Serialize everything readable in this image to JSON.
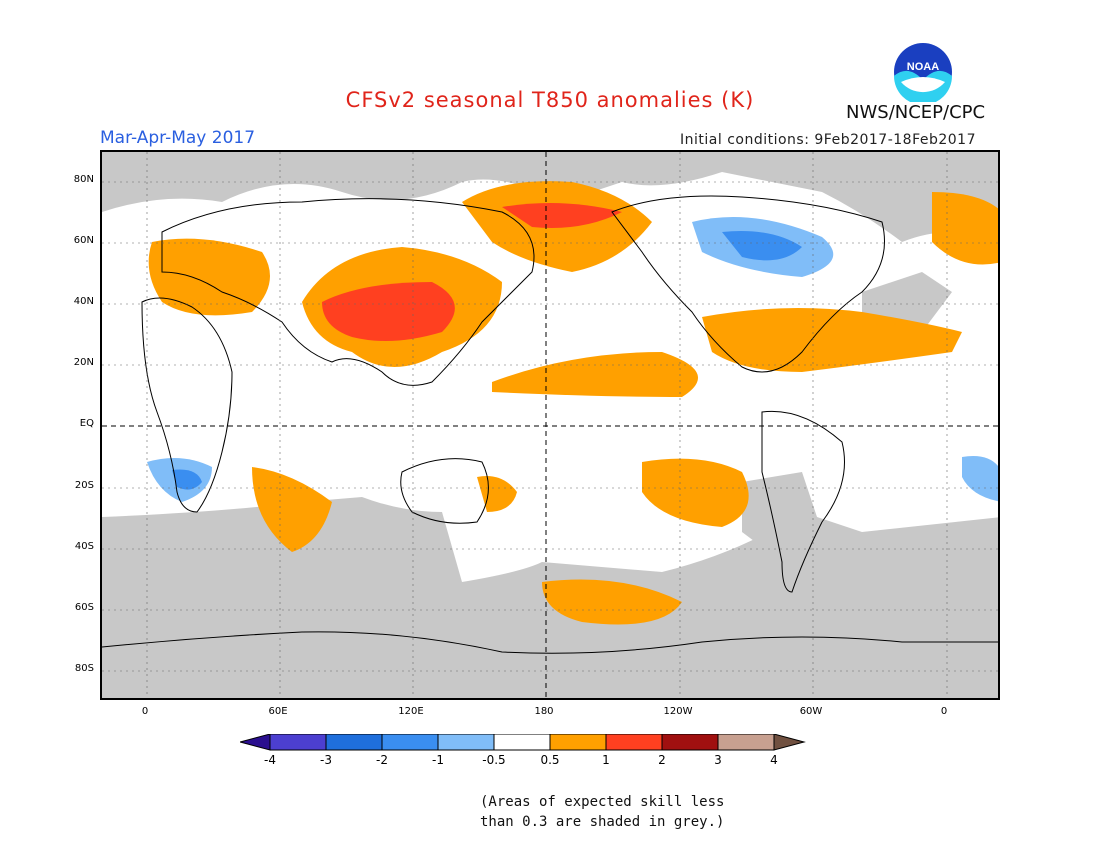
{
  "title": "CFSv2 seasonal T850 anomalies (K)",
  "organization": "NWS/NCEP/CPC",
  "logo_text": "NOAA",
  "season": "Mar-Apr-May 2017",
  "initial_conditions": "Initial conditions: 9Feb2017-18Feb2017",
  "lat_labels": [
    "80N",
    "60N",
    "40N",
    "20N",
    "EQ",
    "20S",
    "40S",
    "60S",
    "80S"
  ],
  "lon_labels": [
    "0",
    "60E",
    "120E",
    "180",
    "120W",
    "60W",
    "0"
  ],
  "colorbar": {
    "labels": [
      "-4",
      "-3",
      "-2",
      "-1",
      "-0.5",
      "0.5",
      "1",
      "2",
      "3",
      "4"
    ],
    "colors": [
      "#2a0f8f",
      "#4c3fd0",
      "#1f6fdc",
      "#3a8ef0",
      "#80bdf8",
      "#ffffff",
      "#ffa000",
      "#ff4020",
      "#a01010",
      "#c8a090",
      "#705040"
    ]
  },
  "colors": {
    "grey_skill_mask": "#c8c8c8",
    "anomaly_plus_0_5": "#ffa000",
    "anomaly_plus_1": "#ff4020",
    "anomaly_minus_0_5": "#80bdf8",
    "anomaly_minus_1": "#3a8ef0",
    "anomaly_minus_2": "#1f6fdc"
  },
  "note_lines": [
    "(Areas of expected skill less",
    "than 0.3 are shaded in grey.)"
  ]
}
